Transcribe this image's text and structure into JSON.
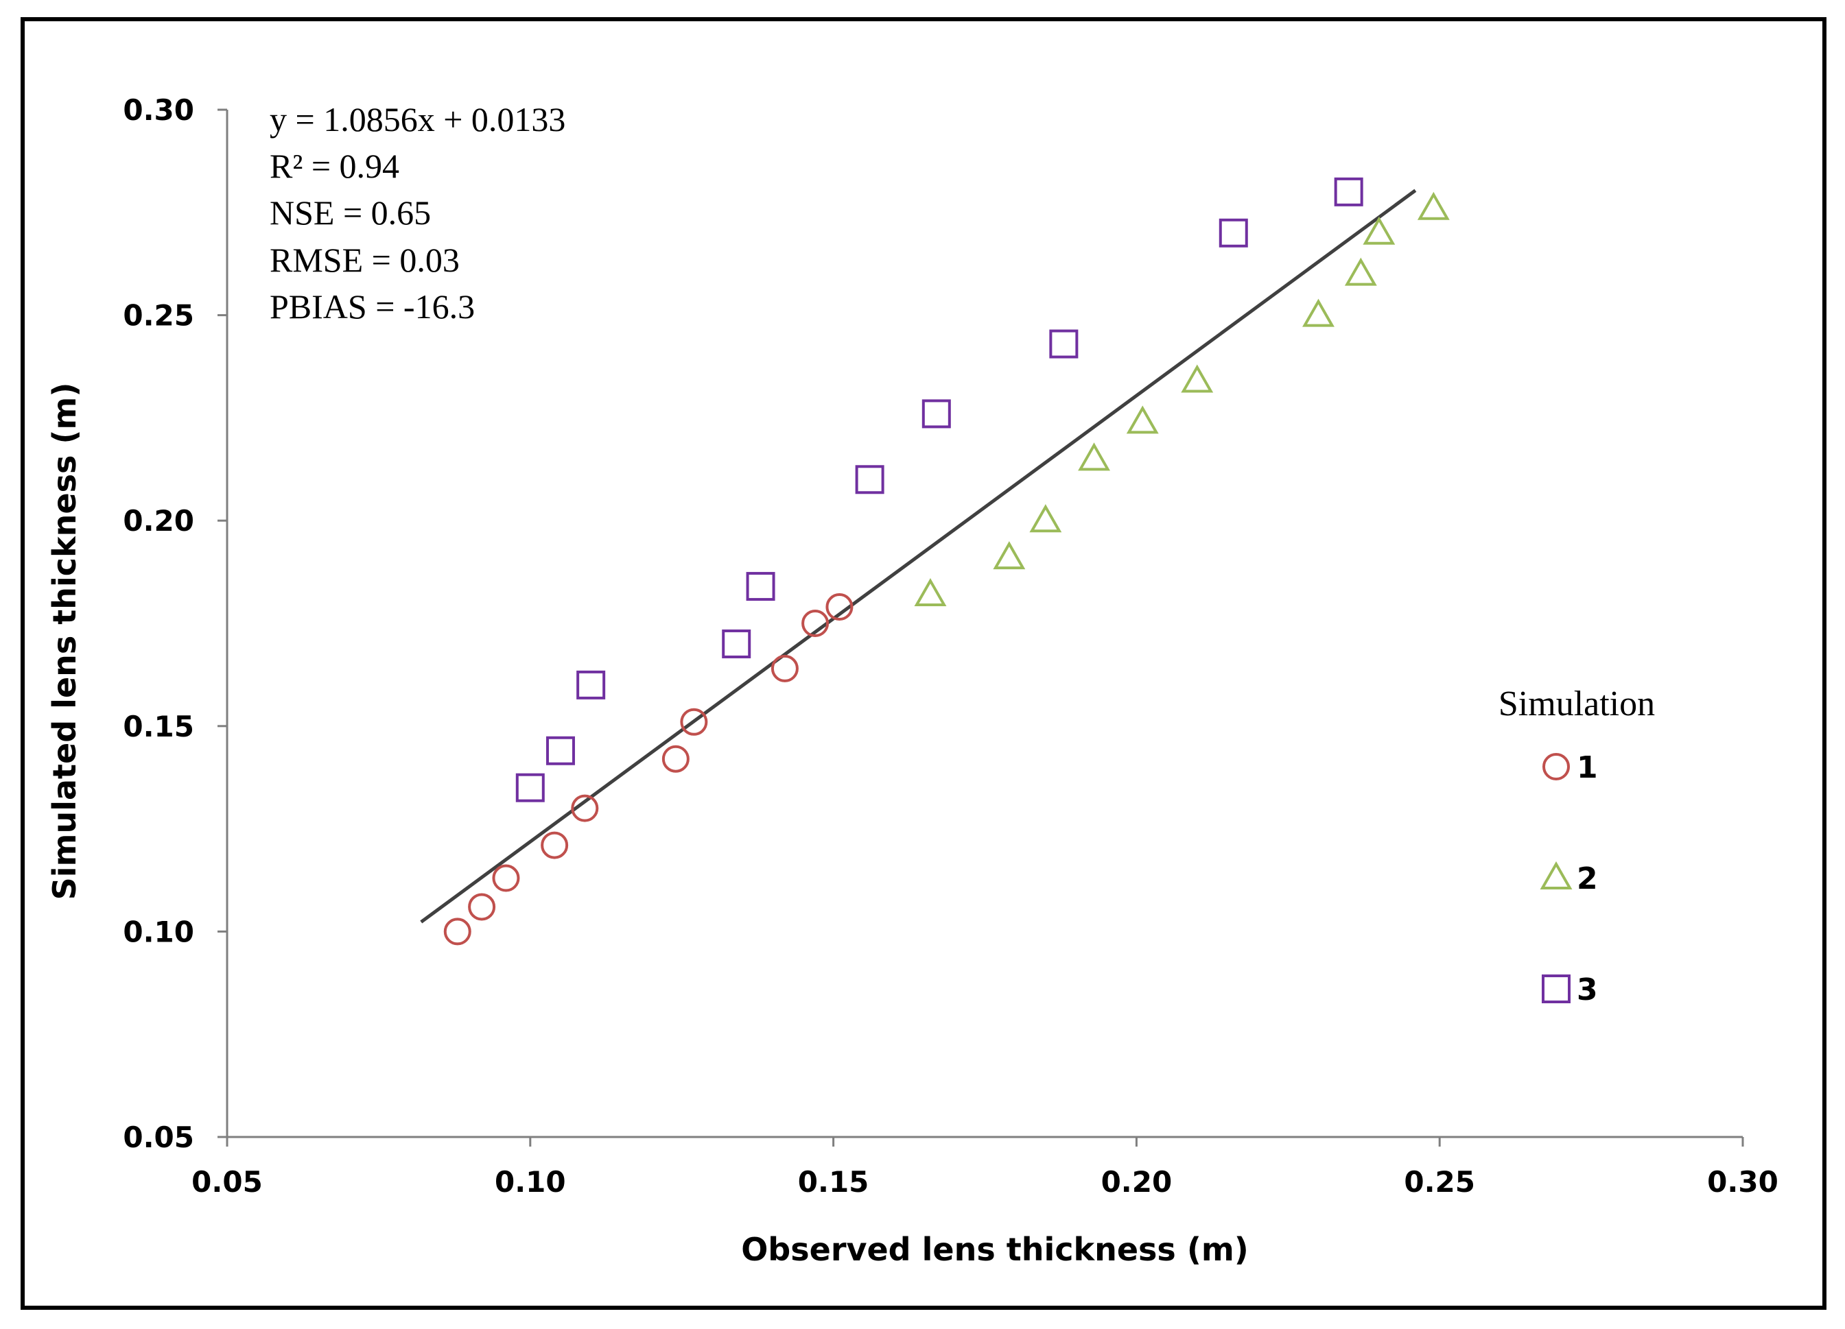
{
  "chart_data": {
    "type": "scatter",
    "xlabel": "Observed lens thickness (m)",
    "ylabel": "Simulated lens thickness (m)",
    "xlim": [
      0.05,
      0.3
    ],
    "ylim": [
      0.05,
      0.3
    ],
    "xticks": [
      "0.05",
      "0.10",
      "0.15",
      "0.20",
      "0.25",
      "0.30"
    ],
    "yticks": [
      "0.05",
      "0.10",
      "0.15",
      "0.20",
      "0.25",
      "0.30"
    ],
    "grid": false,
    "legend_title": "Simulation",
    "legend_position": "right",
    "annotations": [
      "y = 1.0856x + 0.0133",
      "R² = 0.94",
      "NSE = 0.65",
      "RMSE = 0.03",
      "PBIAS =  -16.3"
    ],
    "trendline": {
      "slope": 1.0856,
      "intercept": 0.0133,
      "x_range": [
        0.082,
        0.246
      ],
      "color": "#404040"
    },
    "series": [
      {
        "name": "1",
        "marker": "circle",
        "color": "#c0504d",
        "points": [
          [
            0.088,
            0.1
          ],
          [
            0.092,
            0.106
          ],
          [
            0.096,
            0.113
          ],
          [
            0.104,
            0.121
          ],
          [
            0.109,
            0.13
          ],
          [
            0.124,
            0.142
          ],
          [
            0.127,
            0.151
          ],
          [
            0.142,
            0.164
          ],
          [
            0.147,
            0.175
          ],
          [
            0.151,
            0.179
          ]
        ]
      },
      {
        "name": "2",
        "marker": "triangle",
        "color": "#9bbb59",
        "points": [
          [
            0.166,
            0.182
          ],
          [
            0.179,
            0.191
          ],
          [
            0.185,
            0.2
          ],
          [
            0.193,
            0.215
          ],
          [
            0.201,
            0.224
          ],
          [
            0.21,
            0.234
          ],
          [
            0.23,
            0.25
          ],
          [
            0.237,
            0.26
          ],
          [
            0.24,
            0.27
          ],
          [
            0.249,
            0.276
          ]
        ]
      },
      {
        "name": "3",
        "marker": "square",
        "color": "#7030a0",
        "points": [
          [
            0.1,
            0.135
          ],
          [
            0.105,
            0.144
          ],
          [
            0.11,
            0.16
          ],
          [
            0.134,
            0.17
          ],
          [
            0.138,
            0.184
          ],
          [
            0.156,
            0.21
          ],
          [
            0.167,
            0.226
          ],
          [
            0.188,
            0.243
          ],
          [
            0.216,
            0.27
          ],
          [
            0.235,
            0.28
          ]
        ]
      }
    ]
  }
}
